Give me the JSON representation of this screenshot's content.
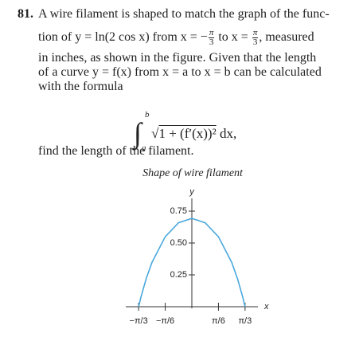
{
  "problem": {
    "number": "81.",
    "lines": [
      [
        {
          "text": "A wire filament is shaped to match the graph of the func-"
        }
      ],
      [
        {
          "text": "tion of y = ln(2 cos x) from x = −"
        },
        {
          "num": "π",
          "den": "3"
        },
        {
          "text": " to x = "
        },
        {
          "num": "π",
          "den": "3"
        },
        {
          "text": ", measured"
        }
      ],
      [
        {
          "text": "in inches, as shown in the figure. Given that the length"
        }
      ],
      [
        {
          "text": "of a curve y = f(x) from x = a to x = b can be calculated"
        }
      ],
      [
        {
          "text": "with the formula"
        }
      ]
    ],
    "formula": {
      "integral_sign": "∫",
      "lower": "a",
      "upper": "b",
      "root_sign": "√",
      "integrand": "1 + (f′(x))²",
      "differential": " dx,"
    },
    "closing": "find the length of the filament."
  },
  "chart_data": {
    "type": "line",
    "title": "Shape of wire filament",
    "x_label": "x",
    "y_label": "y",
    "x": [
      -1.0472,
      -1.0,
      -0.9,
      -0.7854,
      -0.5236,
      -0.2618,
      0,
      0.2618,
      0.5236,
      0.7854,
      0.9,
      1.0,
      1.0472
    ],
    "values": [
      0,
      0.078,
      0.218,
      0.347,
      0.549,
      0.659,
      0.693,
      0.659,
      0.549,
      0.347,
      0.218,
      0.078,
      0
    ],
    "color": "#4aa8dc",
    "xlim": [
      -1.3,
      1.3
    ],
    "ylim": [
      0,
      0.9
    ],
    "xticks": [
      {
        "value": -1.0472,
        "label": "−π/3"
      },
      {
        "value": -0.5236,
        "label": "−π/6"
      },
      {
        "value": 0.5236,
        "label": "π/6"
      },
      {
        "value": 1.0472,
        "label": "π/3"
      }
    ],
    "yticks": [
      0.25,
      {
        "value": 0.5,
        "label": "0.50"
      },
      0.75
    ]
  }
}
